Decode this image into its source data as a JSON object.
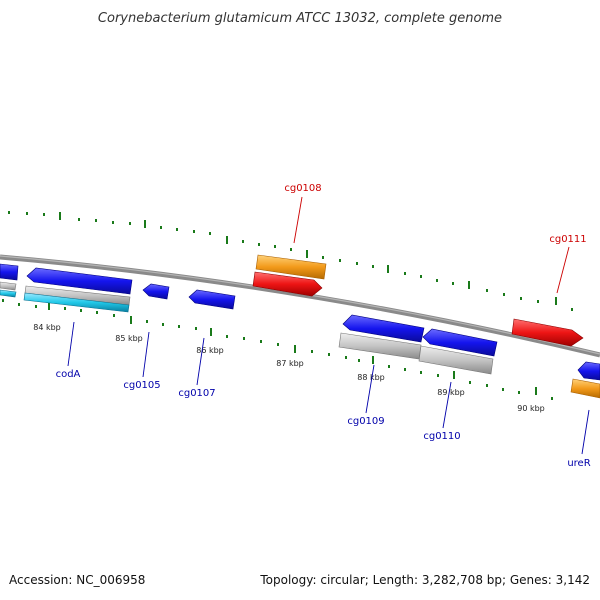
{
  "title": "Corynebacterium glutamicum ATCC 13032, complete genome",
  "footer": {
    "accession": "Accession: NC_006958",
    "summary": "Topology: circular; Length: 3,282,708 bp; Genes: 3,142"
  },
  "tick_labels": [
    "84 kbp",
    "85 kbp",
    "86 kbp",
    "87 kbp",
    "88 kbp",
    "89 kbp",
    "90 kbp"
  ],
  "gene_labels": {
    "cg0108": "cg0108",
    "cg0111": "cg0111",
    "codA": "codA",
    "cg0105": "cg0105",
    "cg0107": "cg0107",
    "cg0109": "cg0109",
    "cg0110": "cg0110",
    "ureR": "ureR"
  },
  "colors": {
    "cds_blue": "#1515ee",
    "orange": "#f39a1a",
    "red": "#ee1515",
    "grey": "#c4c4c4",
    "cyan": "#20c8e8",
    "backbone": "#8a8a8a",
    "ticks": "#1a7a1a",
    "label_red": "#cc0000",
    "label_blue": "#0000aa"
  }
}
